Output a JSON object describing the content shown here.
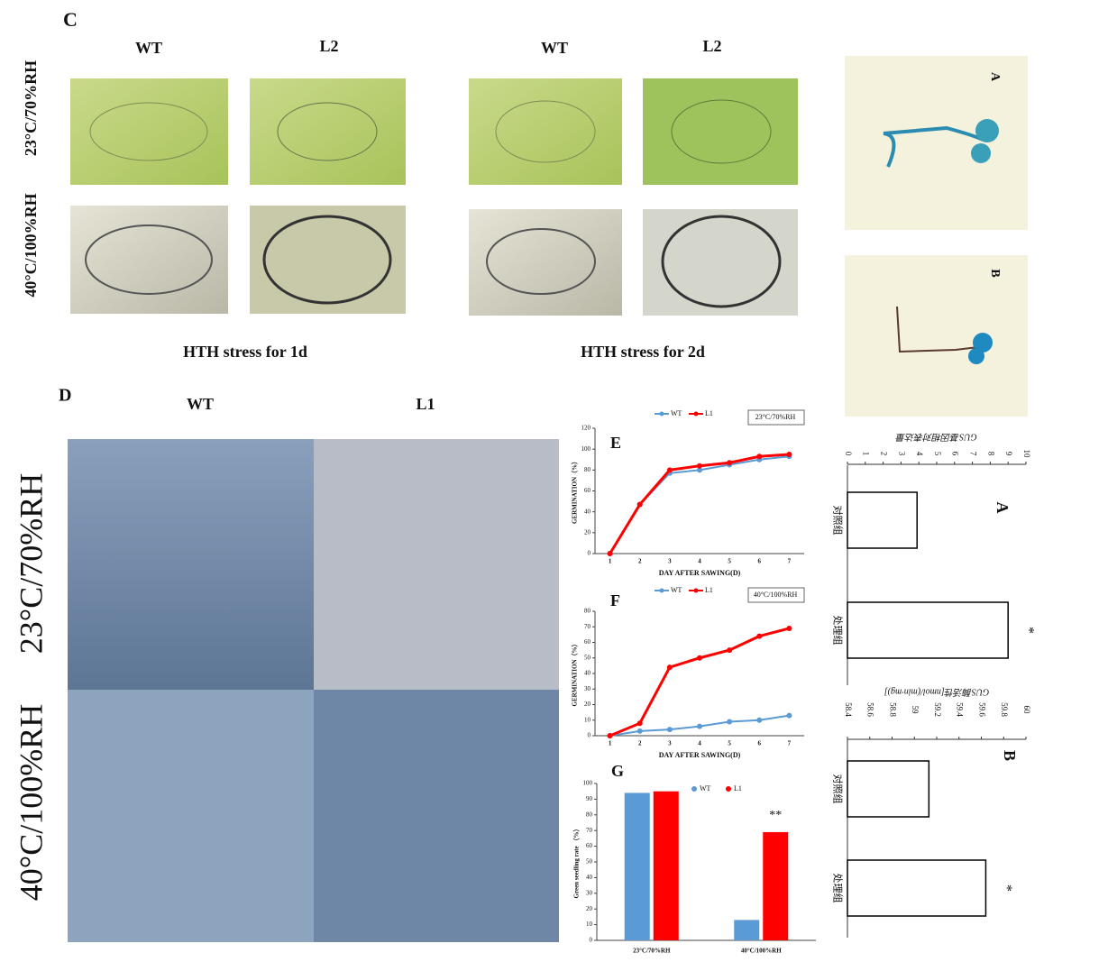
{
  "figure": {
    "panel_c": "C",
    "c_columns": [
      "WT",
      "L2",
      "WT",
      "L2"
    ],
    "c_rows": [
      "23°C/70%RH",
      "40°C/100%RH"
    ],
    "c_captions": [
      "HTH stress for 1d",
      "HTH stress for 2d"
    ],
    "panel_d": "D",
    "d_columns": [
      "WT",
      "L1"
    ],
    "d_rows": [
      "23°C/70%RH",
      "40°C/100%RH"
    ],
    "gus_images": [
      "A",
      "B"
    ]
  },
  "chart_data": [
    {
      "type": "line",
      "label": "E",
      "annotation": "23°C/70%RH",
      "xlabel": "DAY AFTER SAWING(D)",
      "ylabel": "GERMINATION（%）",
      "x": [
        1,
        2,
        3,
        4,
        5,
        6,
        7
      ],
      "xlim": [
        0.5,
        7.5
      ],
      "ylim": [
        0,
        120
      ],
      "yticks": [
        0,
        20,
        40,
        60,
        80,
        100,
        120
      ],
      "series": [
        {
          "name": "WT",
          "color": "#5b9bd5",
          "values": [
            0,
            47,
            77,
            80,
            85,
            90,
            93
          ]
        },
        {
          "name": "L1",
          "color": "#ff0000",
          "values": [
            0,
            47,
            80,
            84,
            87,
            93,
            95
          ]
        }
      ]
    },
    {
      "type": "line",
      "label": "F",
      "annotation": "40°C/100%RH",
      "xlabel": "DAY AFTER SAWING(D)",
      "ylabel": "GERMINATION（%）",
      "x": [
        1,
        2,
        3,
        4,
        5,
        6,
        7
      ],
      "xlim": [
        0.5,
        7.5
      ],
      "ylim": [
        0,
        80
      ],
      "yticks": [
        0,
        10,
        20,
        30,
        40,
        50,
        60,
        70,
        80
      ],
      "series": [
        {
          "name": "WT",
          "color": "#5b9bd5",
          "values": [
            0,
            3,
            4,
            6,
            9,
            10,
            13
          ]
        },
        {
          "name": "L1",
          "color": "#ff0000",
          "values": [
            0,
            8,
            44,
            50,
            55,
            64,
            69
          ]
        }
      ]
    },
    {
      "type": "bar",
      "label": "G",
      "annotation": "**",
      "ylabel": "Green seedling rate （%）",
      "categories": [
        "23°C/70%RH",
        "40°C/100%RH"
      ],
      "ylim": [
        0,
        100
      ],
      "yticks": [
        0,
        10,
        20,
        30,
        40,
        50,
        60,
        70,
        80,
        90,
        100
      ],
      "series": [
        {
          "name": "WT",
          "color": "#5b9bd5",
          "values": [
            94,
            13
          ]
        },
        {
          "name": "L1",
          "color": "#ff0000",
          "values": [
            95,
            69
          ]
        }
      ]
    },
    {
      "type": "hbar",
      "label": "A",
      "annotation": "*",
      "ylabel": "GUS基因相对表达量",
      "color": "#ffffff",
      "categories": [
        "对照组",
        "处理组"
      ],
      "values": [
        3.9,
        9.0
      ],
      "ylim": [
        0,
        10
      ],
      "yticks": [
        0,
        1,
        2,
        3,
        4,
        5,
        6,
        7,
        8,
        9,
        10
      ]
    },
    {
      "type": "hbar",
      "label": "B",
      "annotation": "*",
      "ylabel": "GUS酶活性[nmol/(min·mg)]",
      "color": "#ffffff",
      "categories": [
        "对照组",
        "处理组"
      ],
      "values": [
        59.13,
        59.64
      ],
      "ylim": [
        58.4,
        60
      ],
      "yticks": [
        58.4,
        58.6,
        58.8,
        59,
        59.2,
        59.4,
        59.6,
        59.8,
        60
      ]
    }
  ]
}
